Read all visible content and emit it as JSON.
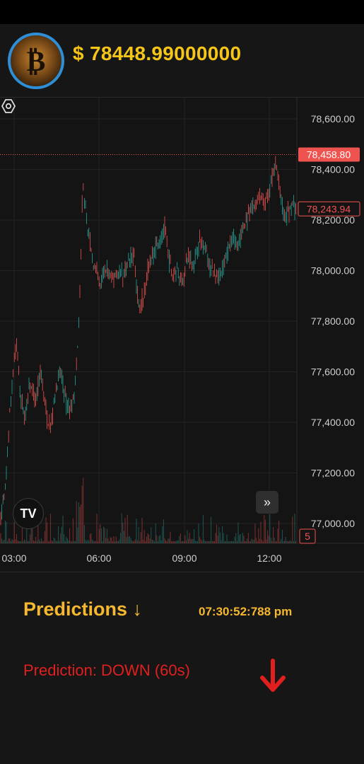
{
  "header": {
    "coin_icon": "bitcoin-icon",
    "price": "$ 78448.99000000"
  },
  "chart": {
    "chart_data": {
      "type": "candlestick",
      "title": "",
      "y_ticks": [
        "78,600.00",
        "78,400.00",
        "78,200.00",
        "78,000.00",
        "77,800.00",
        "77,600.00",
        "77,400.00",
        "77,200.00",
        "77,000.00"
      ],
      "x_ticks": [
        "03:00",
        "06:00",
        "09:00",
        "12:00"
      ],
      "ylim": [
        76900,
        78680
      ],
      "last_price_label": "78,458.80",
      "last_price": 78458.8,
      "cursor_price_label": "78,243.94",
      "cursor_price": 78243.94,
      "volume_label": "5",
      "grid": true,
      "up_color": "#26a69a",
      "down_color": "#ef5350",
      "price_path": [
        [
          0,
          77000
        ],
        [
          8,
          77150
        ],
        [
          14,
          77450
        ],
        [
          20,
          77650
        ],
        [
          24,
          77700
        ],
        [
          30,
          77480
        ],
        [
          36,
          77420
        ],
        [
          42,
          77560
        ],
        [
          50,
          77470
        ],
        [
          58,
          77600
        ],
        [
          66,
          77420
        ],
        [
          72,
          77380
        ],
        [
          78,
          77520
        ],
        [
          86,
          77600
        ],
        [
          94,
          77470
        ],
        [
          100,
          77450
        ],
        [
          106,
          77520
        ],
        [
          110,
          77700
        ],
        [
          114,
          78000
        ],
        [
          117,
          78350
        ],
        [
          120,
          78280
        ],
        [
          124,
          78180
        ],
        [
          130,
          78050
        ],
        [
          136,
          78000
        ],
        [
          142,
          77940
        ],
        [
          150,
          78010
        ],
        [
          158,
          77960
        ],
        [
          166,
          78000
        ],
        [
          174,
          77980
        ],
        [
          182,
          78040
        ],
        [
          190,
          78070
        ],
        [
          194,
          77900
        ],
        [
          198,
          77850
        ],
        [
          204,
          77920
        ],
        [
          210,
          78010
        ],
        [
          218,
          78080
        ],
        [
          226,
          78120
        ],
        [
          234,
          78170
        ],
        [
          238,
          78050
        ],
        [
          244,
          77980
        ],
        [
          250,
          78000
        ],
        [
          258,
          77960
        ],
        [
          266,
          78060
        ],
        [
          274,
          78020
        ],
        [
          282,
          78120
        ],
        [
          290,
          78100
        ],
        [
          298,
          78000
        ],
        [
          306,
          77990
        ],
        [
          314,
          77990
        ],
        [
          322,
          78080
        ],
        [
          330,
          78120
        ],
        [
          338,
          78110
        ],
        [
          346,
          78180
        ],
        [
          354,
          78230
        ],
        [
          362,
          78260
        ],
        [
          368,
          78300
        ],
        [
          374,
          78260
        ],
        [
          380,
          78300
        ],
        [
          386,
          78380
        ],
        [
          390,
          78440
        ],
        [
          393,
          78380
        ],
        [
          398,
          78280
        ],
        [
          402,
          78200
        ],
        [
          408,
          78230
        ],
        [
          414,
          78260
        ],
        [
          420,
          78244
        ]
      ]
    },
    "tradingview_logo": "TV",
    "scroll_icon": "double-chevron-right-icon",
    "settings_icon": "gear-icon"
  },
  "predictions": {
    "title": "Predictions ↓",
    "time": "07:30:52:788 pm",
    "result": "Prediction: DOWN (60s)",
    "direction_icon": "arrow-down-icon",
    "direction_color": "#e0201e"
  }
}
